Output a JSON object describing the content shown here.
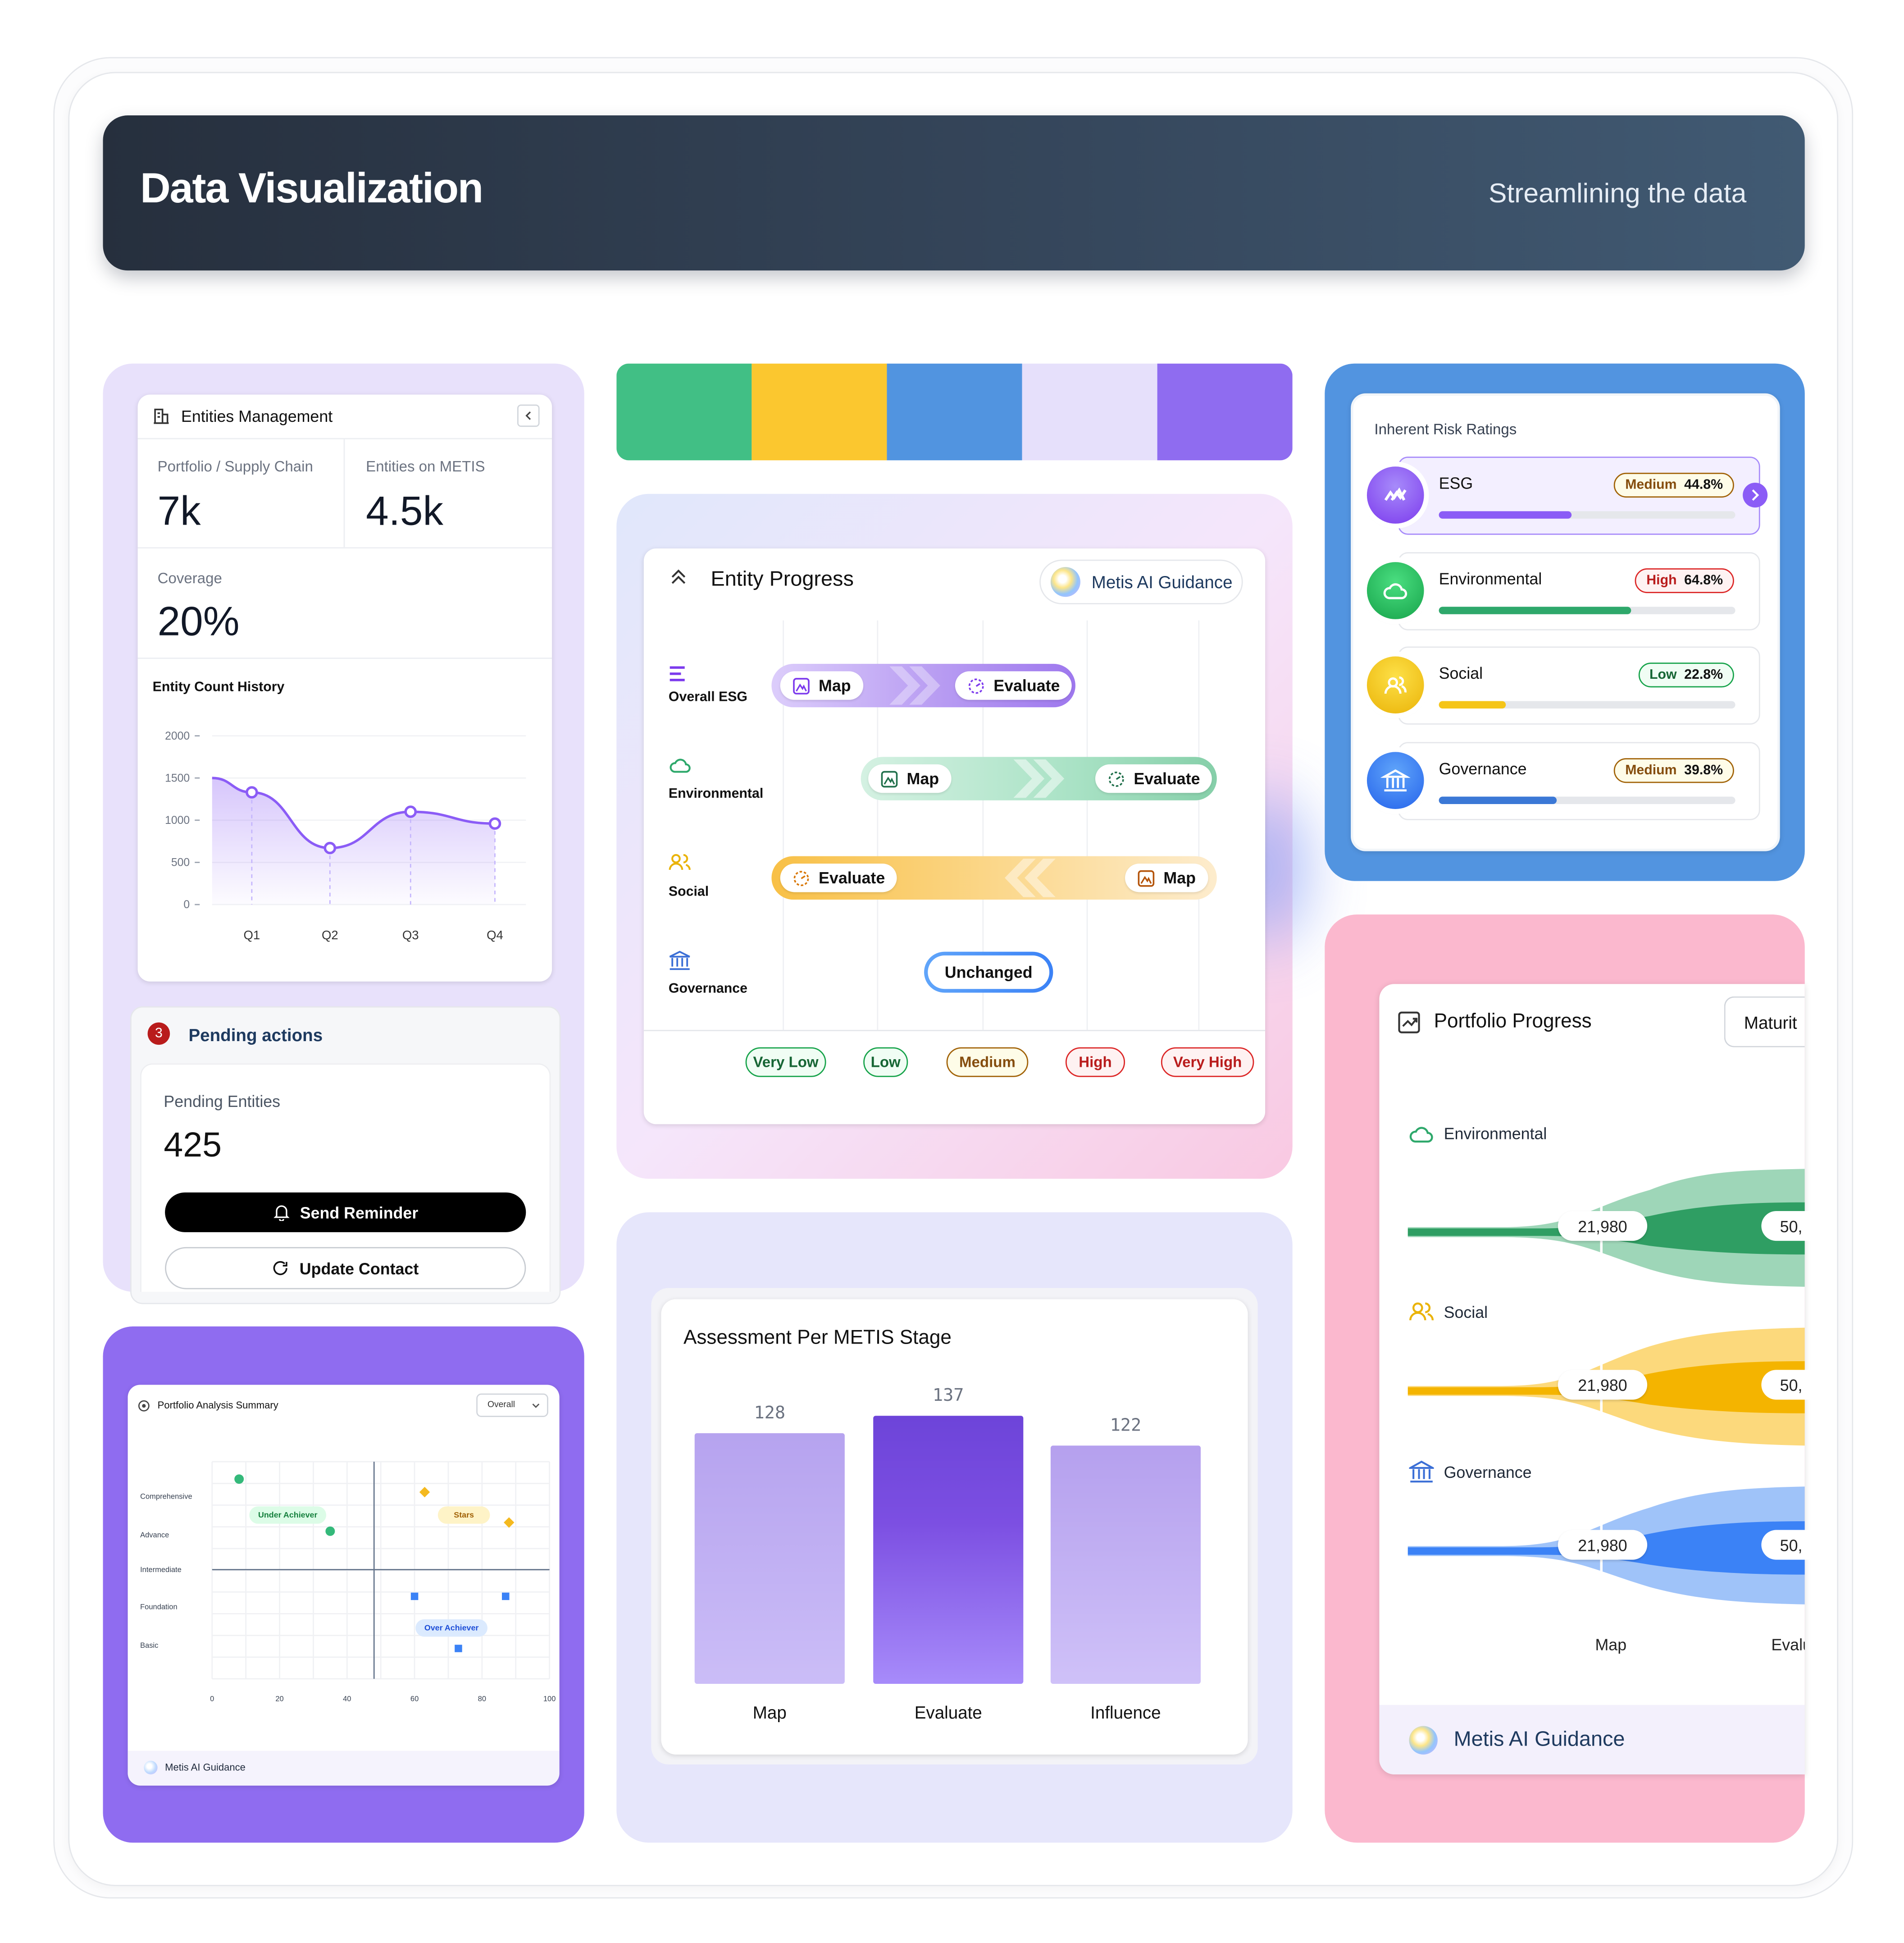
{
  "header": {
    "title": "Data Visualization",
    "subtitle": "Streamlining the data"
  },
  "swatches": [
    "#41bf85",
    "#fbc72f",
    "#5194e0",
    "#e6e0fb",
    "#8f6cf0"
  ],
  "entities": {
    "title": "Entities Management",
    "portfolio_label": "Portfolio / Supply Chain",
    "portfolio_value": "7k",
    "metis_label": "Entities on METIS",
    "metis_value": "4.5k",
    "coverage_label": "Coverage",
    "coverage_value": "20%",
    "history_title": "Entity Count History"
  },
  "pending": {
    "count": "3",
    "title": "Pending actions",
    "entities_label": "Pending Entities",
    "entities_value": "425",
    "reminder_label": "Send Reminder",
    "update_label": "Update Contact"
  },
  "entity_progress": {
    "title": "Entity Progress",
    "ai_label": "Metis AI Guidance",
    "rows": {
      "overall": "Overall ESG",
      "environmental": "Environmental",
      "social": "Social",
      "governance": "Governance"
    },
    "pill_map": "Map",
    "pill_evaluate": "Evaluate",
    "unchanged": "Unchanged",
    "scale": [
      "Very Low",
      "Low",
      "Medium",
      "High",
      "Very High"
    ]
  },
  "risk": {
    "title": "Inherent Risk Ratings",
    "items": [
      {
        "name": "ESG",
        "level": "Medium",
        "pct": "44.8%",
        "value": 0.448,
        "color": "#8b5cf6"
      },
      {
        "name": "Environmental",
        "level": "High",
        "pct": "64.8%",
        "value": 0.648,
        "color": "#2ea86b"
      },
      {
        "name": "Social",
        "level": "Low",
        "pct": "22.8%",
        "value": 0.228,
        "color": "#f5c518"
      },
      {
        "name": "Governance",
        "level": "Medium",
        "pct": "39.8%",
        "value": 0.398,
        "color": "#3b78d6"
      }
    ]
  },
  "portfolio_progress": {
    "title": "Portfolio Progress",
    "dropdown": "Maturit",
    "rows": [
      "Environmental",
      "Social",
      "Governance"
    ],
    "value_a": "21,980",
    "value_b": "50,",
    "stage_map": "Map",
    "stage_eval": "Evalu",
    "ai_label": "Metis AI Guidance"
  },
  "portfolio_summary": {
    "title": "Portfolio Analysis Summary",
    "dropdown": "Overall",
    "y_labels": [
      "Comprehensive",
      "Advance",
      "Intermediate",
      "Foundation",
      "Basic"
    ],
    "x_ticks": [
      "0",
      "20",
      "40",
      "60",
      "80",
      "100"
    ],
    "quadrants": {
      "under": "Under Achiever",
      "stars": "Stars",
      "over": "Over Achiever"
    },
    "ai_label": "Metis AI Guidance"
  },
  "chart_data": [
    {
      "type": "area",
      "title": "Entity Count History",
      "categories": [
        "Q1",
        "Q2",
        "Q3",
        "Q4"
      ],
      "values": [
        1330,
        670,
        1100,
        960
      ],
      "start_value": 1500,
      "ylim": [
        0,
        2000
      ],
      "yticks": [
        "2000",
        "1500",
        "1000",
        "500",
        "0"
      ],
      "color": "#8b5cf6"
    },
    {
      "type": "bar",
      "title": "Assessment Per METIS Stage",
      "categories": [
        "Map",
        "Evaluate",
        "Influence"
      ],
      "values": [
        128,
        137,
        122
      ],
      "labels": [
        "128",
        "137",
        "122"
      ]
    },
    {
      "type": "scatter",
      "title": "Portfolio Analysis Summary",
      "points": [
        {
          "x": 8,
          "y": 4.6,
          "shape": "circle",
          "color": "#34b97a"
        },
        {
          "x": 35,
          "y": 3.4,
          "shape": "circle",
          "color": "#34b97a"
        },
        {
          "x": 63,
          "y": 4.3,
          "shape": "diamond",
          "color": "#f4b91f"
        },
        {
          "x": 88,
          "y": 3.6,
          "shape": "diamond",
          "color": "#f4b91f"
        },
        {
          "x": 60,
          "y": 1.9,
          "shape": "square",
          "color": "#3b82f6"
        },
        {
          "x": 87,
          "y": 1.9,
          "shape": "square",
          "color": "#3b82f6"
        },
        {
          "x": 73,
          "y": 0.7,
          "shape": "square",
          "color": "#3b82f6"
        }
      ]
    }
  ]
}
